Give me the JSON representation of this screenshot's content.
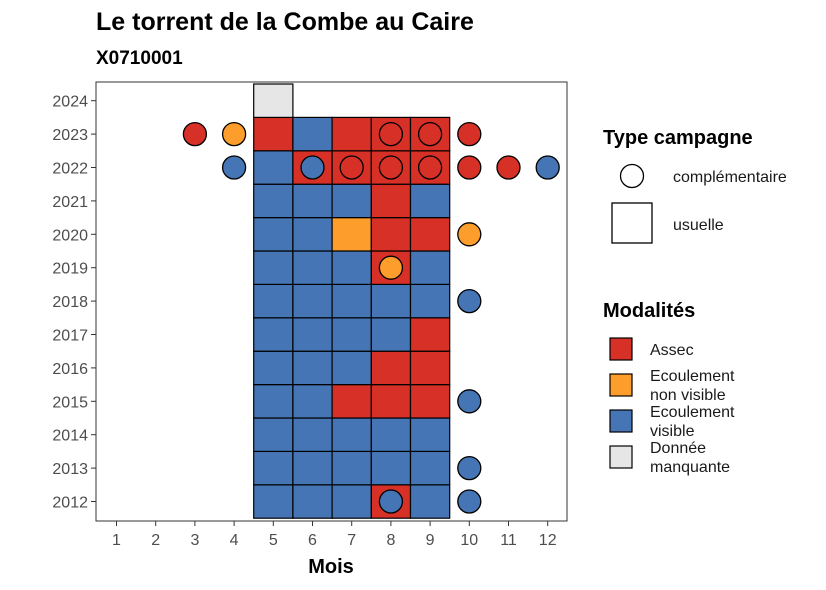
{
  "chart_data": {
    "type": "heatmap",
    "title": "Le torrent de la Combe au Caire",
    "subtitle": "X0710001",
    "xlabel": "Mois",
    "ylabel": "",
    "x_ticks": [
      "1",
      "2",
      "3",
      "4",
      "5",
      "6",
      "7",
      "8",
      "9",
      "10",
      "11",
      "12"
    ],
    "y_ticks": [
      "2012",
      "2013",
      "2014",
      "2015",
      "2016",
      "2017",
      "2018",
      "2019",
      "2020",
      "2021",
      "2022",
      "2023",
      "2024"
    ],
    "grid": false,
    "colors": {
      "Assec": "#d73027",
      "Ecoulement non visible": "#fd9d2b",
      "Ecoulement visible": "#4575b4",
      "Donnée manquante": "#e6e6e6"
    },
    "usuelle": [
      {
        "year": 2012,
        "values": {
          "5": "Ecoulement visible",
          "6": "Ecoulement visible",
          "7": "Ecoulement visible",
          "8": "Assec",
          "9": "Ecoulement visible"
        }
      },
      {
        "year": 2013,
        "values": {
          "5": "Ecoulement visible",
          "6": "Ecoulement visible",
          "7": "Ecoulement visible",
          "8": "Ecoulement visible",
          "9": "Ecoulement visible"
        }
      },
      {
        "year": 2014,
        "values": {
          "5": "Ecoulement visible",
          "6": "Ecoulement visible",
          "7": "Ecoulement visible",
          "8": "Ecoulement visible",
          "9": "Ecoulement visible"
        }
      },
      {
        "year": 2015,
        "values": {
          "5": "Ecoulement visible",
          "6": "Ecoulement visible",
          "7": "Assec",
          "8": "Assec",
          "9": "Assec"
        }
      },
      {
        "year": 2016,
        "values": {
          "5": "Ecoulement visible",
          "6": "Ecoulement visible",
          "7": "Ecoulement visible",
          "8": "Assec",
          "9": "Assec"
        }
      },
      {
        "year": 2017,
        "values": {
          "5": "Ecoulement visible",
          "6": "Ecoulement visible",
          "7": "Ecoulement visible",
          "8": "Ecoulement visible",
          "9": "Assec"
        }
      },
      {
        "year": 2018,
        "values": {
          "5": "Ecoulement visible",
          "6": "Ecoulement visible",
          "7": "Ecoulement visible",
          "8": "Ecoulement visible",
          "9": "Ecoulement visible"
        }
      },
      {
        "year": 2019,
        "values": {
          "5": "Ecoulement visible",
          "6": "Ecoulement visible",
          "7": "Ecoulement visible",
          "8": "Assec",
          "9": "Ecoulement visible"
        }
      },
      {
        "year": 2020,
        "values": {
          "5": "Ecoulement visible",
          "6": "Ecoulement visible",
          "7": "Ecoulement non visible",
          "8": "Assec",
          "9": "Assec"
        }
      },
      {
        "year": 2021,
        "values": {
          "5": "Ecoulement visible",
          "6": "Ecoulement visible",
          "7": "Ecoulement visible",
          "8": "Assec",
          "9": "Ecoulement visible"
        }
      },
      {
        "year": 2022,
        "values": {
          "5": "Ecoulement visible",
          "6": "Assec",
          "7": "Assec",
          "8": "Assec",
          "9": "Assec"
        }
      },
      {
        "year": 2023,
        "values": {
          "5": "Assec",
          "6": "Ecoulement visible",
          "7": "Assec",
          "8": "Assec",
          "9": "Assec"
        }
      },
      {
        "year": 2024,
        "values": {
          "5": "Donnée manquante"
        }
      }
    ],
    "complementaire": [
      {
        "year": 2012,
        "month": 8,
        "value": "Ecoulement visible"
      },
      {
        "year": 2012,
        "month": 10,
        "value": "Ecoulement visible"
      },
      {
        "year": 2013,
        "month": 10,
        "value": "Ecoulement visible"
      },
      {
        "year": 2015,
        "month": 10,
        "value": "Ecoulement visible"
      },
      {
        "year": 2018,
        "month": 10,
        "value": "Ecoulement visible"
      },
      {
        "year": 2019,
        "month": 8,
        "value": "Ecoulement non visible"
      },
      {
        "year": 2020,
        "month": 10,
        "value": "Ecoulement non visible"
      },
      {
        "year": 2022,
        "month": 4,
        "value": "Ecoulement visible"
      },
      {
        "year": 2022,
        "month": 6,
        "value": "Ecoulement visible"
      },
      {
        "year": 2022,
        "month": 7,
        "value": "Assec"
      },
      {
        "year": 2022,
        "month": 8,
        "value": "Assec"
      },
      {
        "year": 2022,
        "month": 9,
        "value": "Assec"
      },
      {
        "year": 2022,
        "month": 10,
        "value": "Assec"
      },
      {
        "year": 2022,
        "month": 11,
        "value": "Assec"
      },
      {
        "year": 2022,
        "month": 12,
        "value": "Ecoulement visible"
      },
      {
        "year": 2023,
        "month": 3,
        "value": "Assec"
      },
      {
        "year": 2023,
        "month": 4,
        "value": "Ecoulement non visible"
      },
      {
        "year": 2023,
        "month": 8,
        "value": "Assec"
      },
      {
        "year": 2023,
        "month": 9,
        "value": "Assec"
      },
      {
        "year": 2023,
        "month": 10,
        "value": "Assec"
      }
    ],
    "legend": {
      "type_title": "Type campagne",
      "type_items": [
        "complémentaire",
        "usuelle"
      ],
      "mod_title": "Modalités",
      "mod_items": [
        {
          "key": "Assec",
          "lines": [
            "Assec"
          ]
        },
        {
          "key": "Ecoulement non visible",
          "lines": [
            "Ecoulement",
            "non visible"
          ]
        },
        {
          "key": "Ecoulement visible",
          "lines": [
            "Ecoulement",
            "visible"
          ]
        },
        {
          "key": "Donnée manquante",
          "lines": [
            "Donnée",
            "manquante"
          ]
        }
      ]
    }
  }
}
